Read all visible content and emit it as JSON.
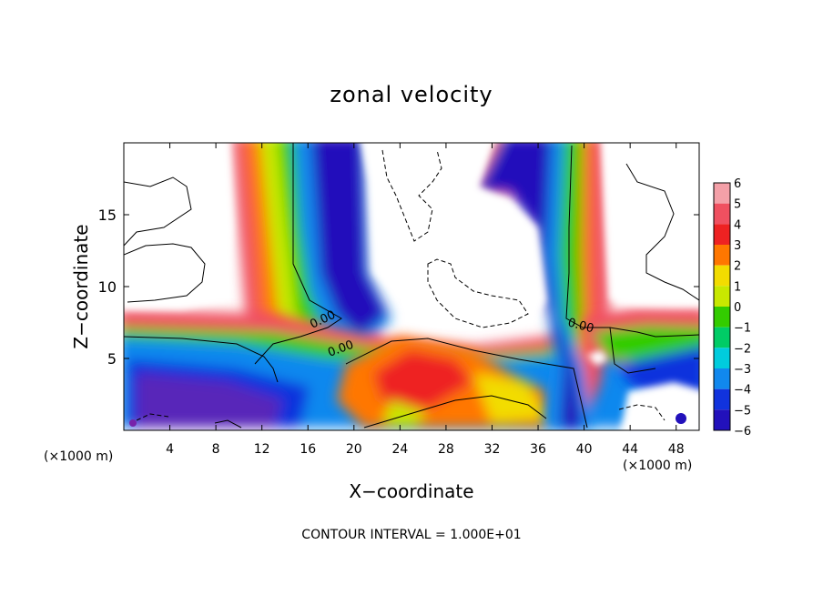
{
  "chart_data": {
    "type": "heatmap",
    "title": "zonal velocity",
    "xlabel": "X−coordinate",
    "ylabel": "Z−coordinate",
    "x_unit_left": "(×1000 m)",
    "x_unit_right": "(×1000 m)",
    "xlim": [
      0,
      50
    ],
    "ylim": [
      0,
      20
    ],
    "x_ticks": [
      "4",
      "8",
      "12",
      "16",
      "20",
      "24",
      "28",
      "32",
      "36",
      "40",
      "44",
      "48"
    ],
    "y_ticks": [
      "5",
      "10",
      "15"
    ],
    "colorbar": {
      "labels": [
        "6",
        "5",
        "4",
        "3",
        "2",
        "1",
        "0",
        "−1",
        "−2",
        "−3",
        "−4",
        "−5",
        "−6"
      ],
      "colors": [
        "#f4a0a8",
        "#f05060",
        "#ee2222",
        "#ff7700",
        "#f2dc00",
        "#c8e800",
        "#33cc00",
        "#00cc66",
        "#00ccdd",
        "#1188ee",
        "#1133dd",
        "#2211bb",
        "#7722aa"
      ]
    },
    "contour_labels": [
      "0.00",
      "0.00",
      "0.00"
    ],
    "footer": "CONTOUR INTERVAL = 1.000E+01"
  }
}
